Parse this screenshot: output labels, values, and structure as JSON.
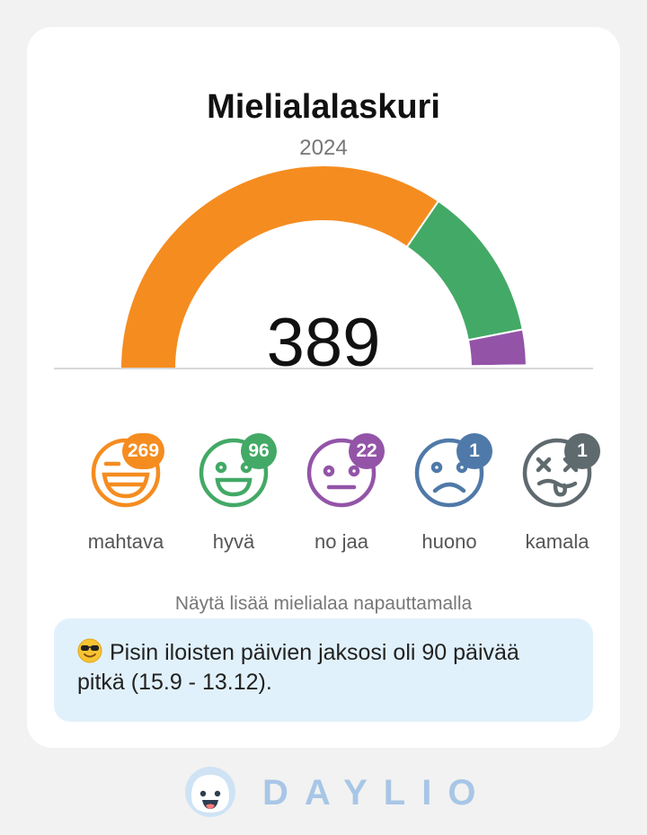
{
  "header": {
    "title": "Mielialalaskuri",
    "year": "2024"
  },
  "gauge": {
    "total": "389"
  },
  "moods": [
    {
      "label": "mahtava",
      "count": 269,
      "count_text": "269",
      "color": "#f58c20",
      "icon": "grinning-face-icon"
    },
    {
      "label": "hyvä",
      "count": 96,
      "count_text": "96",
      "color": "#43a966",
      "icon": "smiling-face-icon"
    },
    {
      "label": "no jaa",
      "count": 22,
      "count_text": "22",
      "color": "#9354a8",
      "icon": "neutral-face-icon"
    },
    {
      "label": "huono",
      "count": 1,
      "count_text": "1",
      "color": "#4f79a8",
      "icon": "sad-face-icon"
    },
    {
      "label": "kamala",
      "count": 1,
      "count_text": "1",
      "color": "#5f6a6e",
      "icon": "dizzy-face-icon"
    }
  ],
  "hint": "Näytä lisää mielialaa napauttamalla",
  "streak": {
    "icon": "sunglasses-emoji-icon",
    "text": "Pisin iloisten päivien jaksosi oli 90 päivää pitkä (15.9 - 13.12)."
  },
  "brand": {
    "logo": "daylio-logo-icon",
    "name": "DAYLIO"
  }
}
